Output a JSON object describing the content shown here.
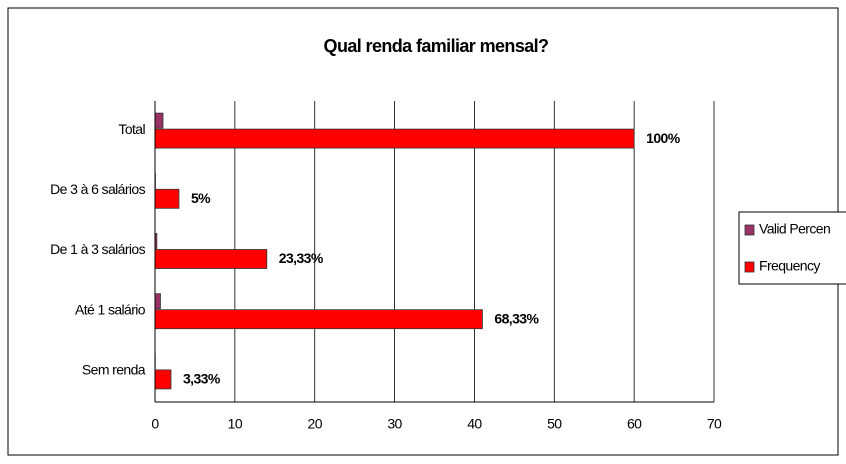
{
  "chart_data": {
    "type": "hbar",
    "title": "Qual  renda familiar mensal?",
    "categories": [
      "Total",
      "De 3 à 6 salários",
      "De 1 à 3 salários",
      "Até 1 salário",
      "Sem renda"
    ],
    "series": [
      {
        "name": "Valid Percen",
        "color": "#993366",
        "values": [
          1,
          0.05,
          0.2333,
          0.6833,
          0.0333
        ],
        "value_labels": [
          "100%",
          "5%",
          "23,33%",
          "68,33%",
          "3,33%"
        ]
      },
      {
        "name": "Frequency",
        "color": "#ff0000",
        "values": [
          60,
          3,
          14,
          41,
          2
        ]
      }
    ],
    "xlim": [
      0,
      70
    ],
    "xticks": [
      0,
      10,
      20,
      30,
      40,
      50,
      60,
      70
    ],
    "grid": true,
    "legend": "right"
  }
}
